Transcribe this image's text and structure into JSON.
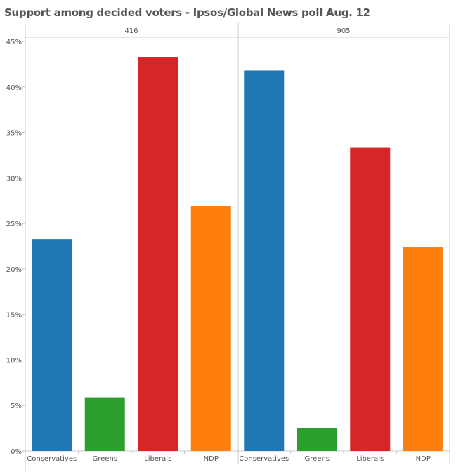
{
  "chart_data": {
    "type": "bar",
    "title": "Support among decided voters - Ipsos/Global News poll Aug. 12",
    "panels": [
      "416",
      "905"
    ],
    "categories": [
      "Conservatives",
      "Greens",
      "Liberals",
      "NDP"
    ],
    "colors": [
      "#1f77b4",
      "#2ca02c",
      "#d62728",
      "#ff7f0e"
    ],
    "series": [
      {
        "panel": "416",
        "values": [
          23.3,
          5.9,
          43.3,
          26.9
        ]
      },
      {
        "panel": "905",
        "values": [
          41.8,
          2.5,
          33.3,
          22.4
        ]
      }
    ],
    "ylim": [
      0,
      45
    ],
    "yticks": [
      "0%",
      "5%",
      "10%",
      "15%",
      "20%",
      "25%",
      "30%",
      "35%",
      "40%",
      "45%"
    ],
    "grid": false
  }
}
